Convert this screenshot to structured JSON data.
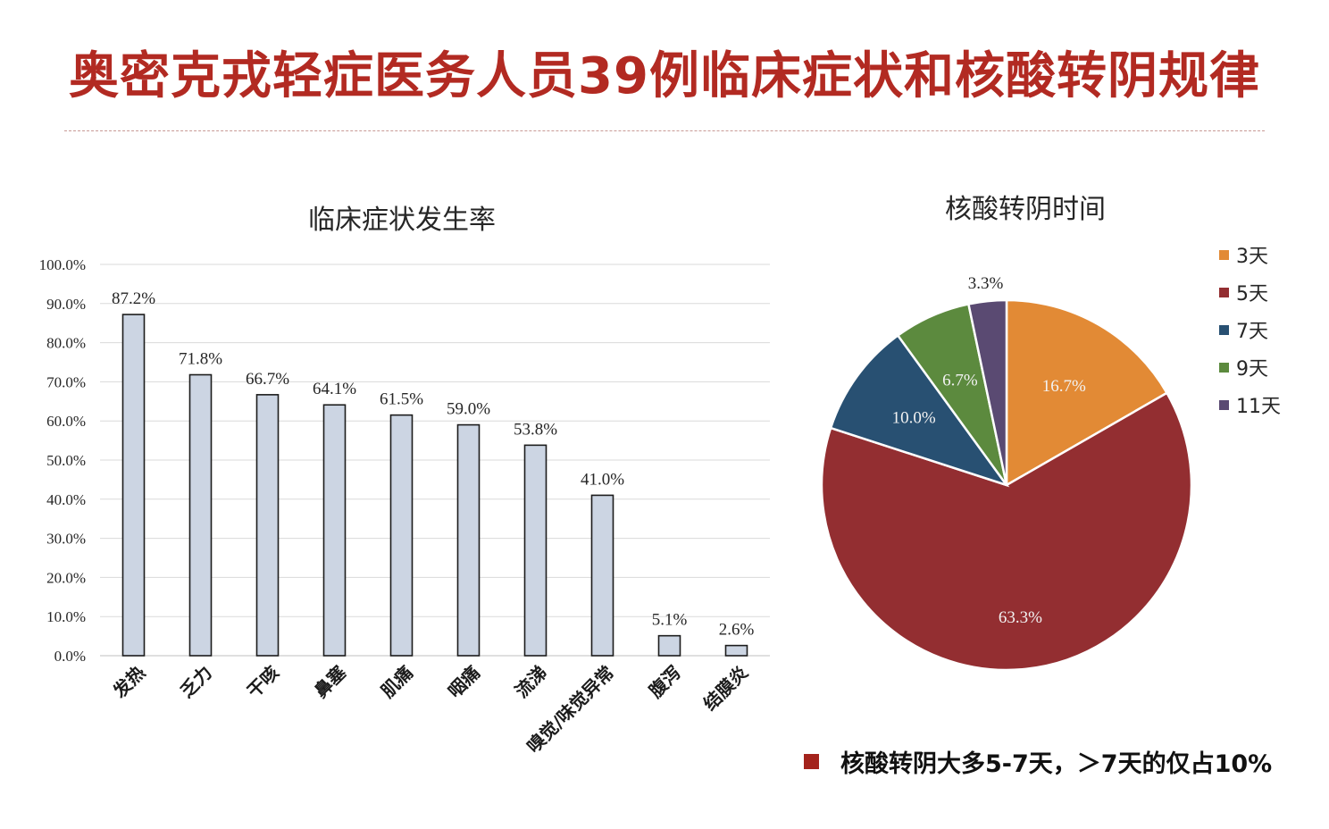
{
  "slide": {
    "title": "奥密克戎轻症医务人员39例临床症状和核酸转阴规律",
    "footnote": "核酸转阴大多5-7天，＞7天的仅占10%"
  },
  "colors": {
    "title": "#b22a22",
    "bar_fill": "#ccd5e3",
    "bar_stroke": "#1c1c1c",
    "grid": "#dadada",
    "bullet": "#a4231c"
  },
  "chart_data": [
    {
      "type": "bar",
      "title": "临床症状发生率",
      "categories": [
        "发热",
        "乏力",
        "干咳",
        "鼻塞",
        "肌痛",
        "咽痛",
        "流涕",
        "嗅觉/味觉异常",
        "腹泻",
        "结膜炎"
      ],
      "values": [
        87.2,
        71.8,
        66.7,
        64.1,
        61.5,
        59.0,
        53.8,
        41.0,
        5.1,
        2.6
      ],
      "data_labels": [
        "87.2%",
        "71.8%",
        "66.7%",
        "64.1%",
        "61.5%",
        "59.0%",
        "53.8%",
        "41.0%",
        "5.1%",
        "2.6%"
      ],
      "ylim": [
        0,
        100
      ],
      "y_ticks": [
        0,
        10,
        20,
        30,
        40,
        50,
        60,
        70,
        80,
        90,
        100
      ],
      "y_tick_labels": [
        "0.0%",
        "10.0%",
        "20.0%",
        "30.0%",
        "40.0%",
        "50.0%",
        "60.0%",
        "70.0%",
        "80.0%",
        "90.0%",
        "100.0%"
      ],
      "grid": true,
      "xlabel": "",
      "ylabel": ""
    },
    {
      "type": "pie",
      "title": "核酸转阴时间",
      "labels": [
        "3天",
        "5天",
        "7天",
        "9天",
        "11天"
      ],
      "values": [
        16.7,
        63.3,
        10.0,
        6.7,
        3.3
      ],
      "data_labels": [
        "16.7%",
        "63.3%",
        "10.0%",
        "6.7%",
        "3.3%"
      ],
      "colors": [
        "#e28a35",
        "#932e31",
        "#285072",
        "#5c8a3e",
        "#5a4a72"
      ],
      "legend_position": "top-right"
    }
  ]
}
